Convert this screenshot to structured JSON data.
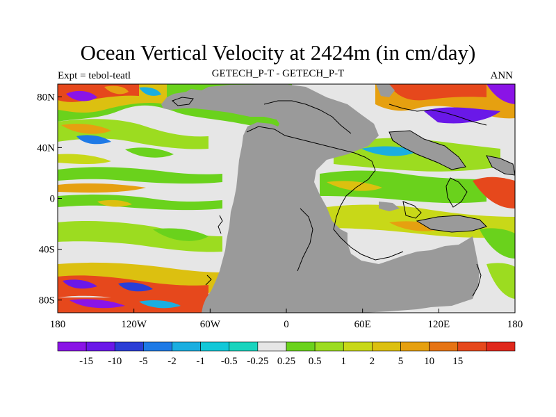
{
  "chart_data": {
    "type": "heatmap",
    "title": "Ocean Vertical Velocity at 2424m (in cm/day)",
    "left_string": "Expt = tebol-teatl",
    "center_string": "GETECH_P-T - GETECH_P-T",
    "right_string": "ANN",
    "x_ticks": [
      "180",
      "120W",
      "60W",
      "0",
      "60E",
      "120E",
      "180"
    ],
    "y_ticks": [
      "80N",
      "40N",
      "0",
      "40S",
      "80S"
    ],
    "xlim": [
      -180,
      180
    ],
    "ylim": [
      -90,
      90
    ],
    "colorbar": {
      "labels": [
        "-15",
        "-10",
        "-5",
        "-2",
        "-1",
        "-0.5",
        "-0.25",
        "0.25",
        "0.5",
        "1",
        "2",
        "5",
        "10",
        "15"
      ],
      "colors": [
        "#8a14e6",
        "#6a18e8",
        "#2a3ed6",
        "#1e7ae6",
        "#1aaee0",
        "#12c8d8",
        "#18d4be",
        "#e6e6e6",
        "#6ad21c",
        "#9cdc20",
        "#c8d818",
        "#dcc010",
        "#e6a010",
        "#e67414",
        "#e6481c",
        "#e0281c"
      ]
    },
    "colors": {
      "land": "#9a9a9a",
      "near_zero": "#e6e6e6"
    }
  }
}
